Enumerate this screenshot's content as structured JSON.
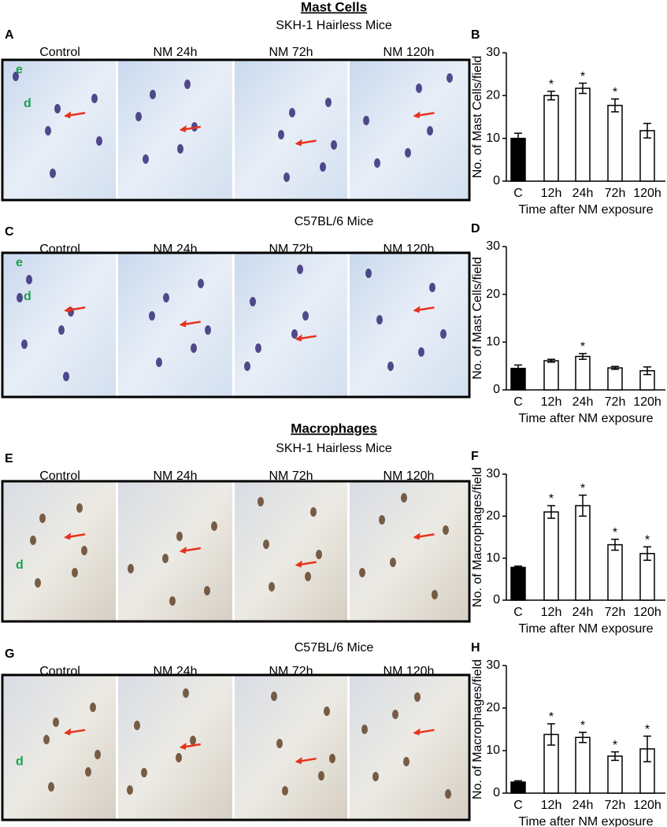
{
  "sections": [
    {
      "title": "Mast Cells"
    },
    {
      "title": "Macrophages"
    }
  ],
  "panels": [
    {
      "letter": "A",
      "strain": "SKH-1 Hairless Mice",
      "images": [
        "Control",
        "NM 24h",
        "NM 72h",
        "NM 120h"
      ],
      "tissue_labels": [
        "e",
        "d"
      ]
    },
    {
      "letter": "C",
      "strain": "C57BL/6 Mice",
      "images": [
        "Control",
        "NM 24h",
        "NM 72h",
        "NM 120h"
      ],
      "tissue_labels": [
        "e",
        "d"
      ]
    },
    {
      "letter": "E",
      "strain": "SKH-1 Hairless Mice",
      "images": [
        "Control",
        "NM 24h",
        "NM 72h",
        "NM 120h"
      ],
      "tissue_labels": [
        "d"
      ]
    },
    {
      "letter": "G",
      "strain": "C57BL/6 Mice",
      "images": [
        "Control",
        "NM 24h",
        "NM 72h",
        "NM 120h"
      ],
      "tissue_labels": [
        "d"
      ]
    }
  ],
  "chart_data": [
    {
      "type": "bar",
      "panel_label": "B",
      "ylabel": "No. of Mast Cells/field",
      "xlabel": "Time after NM exposure",
      "categories": [
        "C",
        "12h",
        "24h",
        "72h",
        "120h"
      ],
      "values": [
        10,
        20,
        21.7,
        17.7,
        11.8
      ],
      "errors": [
        1.2,
        1,
        1.2,
        1.5,
        1.7
      ],
      "significance": [
        null,
        "*",
        "*",
        "*",
        null
      ],
      "colors": [
        "#000000",
        "#ffffff",
        "#ffffff",
        "#ffffff",
        "#ffffff"
      ],
      "ylim": [
        0,
        30
      ],
      "yticks": [
        0,
        10,
        20,
        30
      ]
    },
    {
      "type": "bar",
      "panel_label": "D",
      "ylabel": "No. of Mast Cells/field",
      "xlabel": "Time after NM exposure",
      "categories": [
        "C",
        "12h",
        "24h",
        "72h",
        "120h"
      ],
      "values": [
        4.5,
        6.1,
        7,
        4.6,
        4
      ],
      "errors": [
        0.7,
        0.3,
        0.6,
        0.3,
        0.8
      ],
      "significance": [
        null,
        null,
        "*",
        null,
        null
      ],
      "colors": [
        "#000000",
        "#ffffff",
        "#ffffff",
        "#ffffff",
        "#ffffff"
      ],
      "ylim": [
        0,
        30
      ],
      "yticks": [
        0,
        10,
        20,
        30
      ]
    },
    {
      "type": "bar",
      "panel_label": "F",
      "ylabel": "No. of Macrophages/field",
      "xlabel": "Time after NM exposure",
      "categories": [
        "C",
        "12h",
        "24h",
        "72h",
        "120h"
      ],
      "values": [
        7.8,
        21,
        22.5,
        13.2,
        11.1
      ],
      "errors": [
        0.3,
        1.5,
        2.5,
        1.3,
        1.6
      ],
      "significance": [
        null,
        "*",
        "*",
        "*",
        "*"
      ],
      "colors": [
        "#000000",
        "#ffffff",
        "#ffffff",
        "#ffffff",
        "#ffffff"
      ],
      "ylim": [
        0,
        30
      ],
      "yticks": [
        0,
        10,
        20,
        30
      ]
    },
    {
      "type": "bar",
      "panel_label": "H",
      "ylabel": "No. of Macrophages/field",
      "xlabel": "Time after NM exposure",
      "categories": [
        "C",
        "12h",
        "24h",
        "72h",
        "120h"
      ],
      "values": [
        2.6,
        13.8,
        13.1,
        8.7,
        10.4
      ],
      "errors": [
        0.3,
        2.5,
        1.2,
        1,
        3
      ],
      "significance": [
        null,
        "*",
        "*",
        "*",
        "*"
      ],
      "colors": [
        "#000000",
        "#ffffff",
        "#ffffff",
        "#ffffff",
        "#ffffff"
      ],
      "ylim": [
        0,
        30
      ],
      "yticks": [
        0,
        10,
        20,
        30
      ]
    }
  ]
}
